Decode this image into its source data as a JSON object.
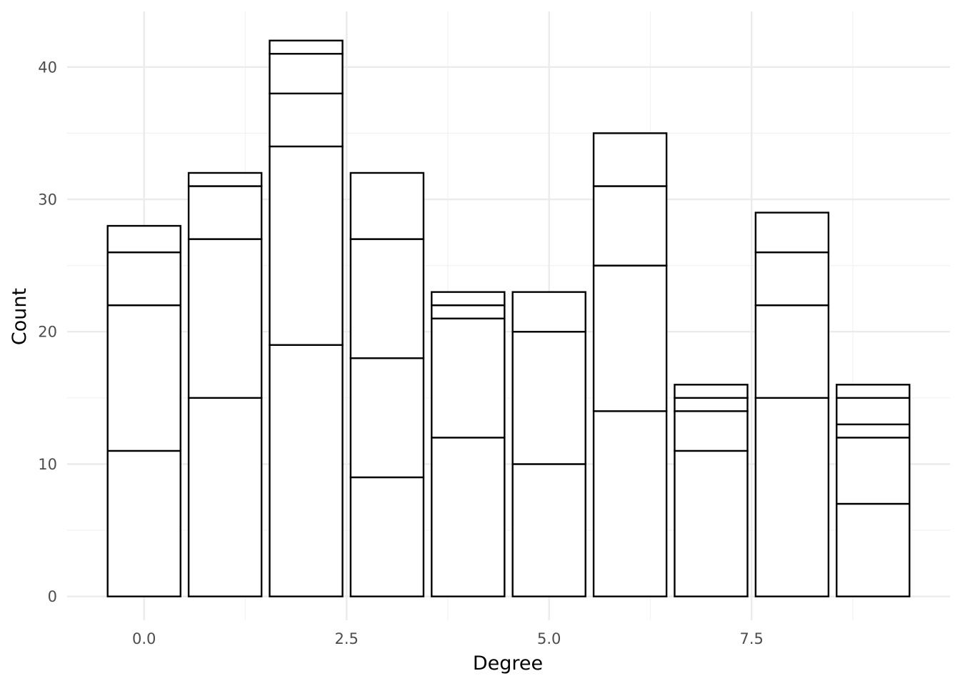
{
  "chart_data": {
    "type": "bar",
    "stacked": true,
    "title": "",
    "xlabel": "Degree",
    "ylabel": "Count",
    "xlim": [
      -0.95,
      9.95
    ],
    "ylim": [
      -1.8,
      44.2
    ],
    "x_ticks": [
      0.0,
      2.5,
      5.0,
      7.5
    ],
    "x_tick_labels": [
      "0.0",
      "2.5",
      "5.0",
      "7.5"
    ],
    "y_ticks": [
      0,
      10,
      20,
      30,
      40
    ],
    "y_tick_labels": [
      "0",
      "10",
      "20",
      "30",
      "40"
    ],
    "grid": true,
    "legend": "none",
    "bar_width": 0.9,
    "x": [
      0,
      1,
      2,
      3,
      4,
      5,
      6,
      7,
      8,
      9
    ],
    "segment_boundaries": [
      [
        11,
        22,
        26,
        28
      ],
      [
        15,
        27,
        31,
        32
      ],
      [
        19,
        34,
        38,
        41,
        42
      ],
      [
        9,
        18,
        27,
        32
      ],
      [
        12,
        21,
        22,
        23
      ],
      [
        10,
        20,
        23
      ],
      [
        14,
        25,
        31,
        35
      ],
      [
        11,
        14,
        15,
        16
      ],
      [
        15,
        22,
        26,
        29
      ],
      [
        7,
        12,
        13,
        15,
        16
      ]
    ],
    "totals": [
      28,
      32,
      42,
      32,
      23,
      23,
      35,
      16,
      29,
      16
    ],
    "colors": {
      "bar_fill": "#ffffff",
      "bar_stroke": "#000000",
      "grid_major": "#ebebeb",
      "grid_minor": "#f2f2f2"
    }
  }
}
